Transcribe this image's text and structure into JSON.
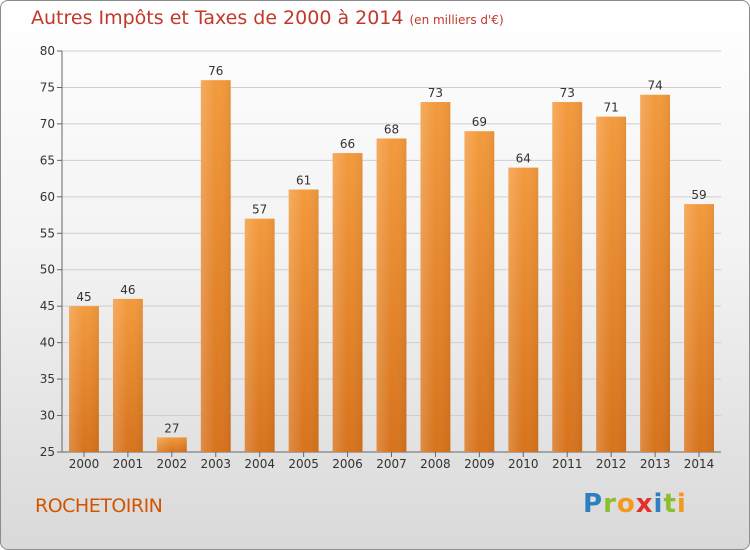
{
  "chart_data": {
    "type": "bar",
    "title": "Autres Impôts et Taxes de 2000 à 2014",
    "subtitle": "(en milliers d'€)",
    "categories": [
      "2000",
      "2001",
      "2002",
      "2003",
      "2004",
      "2005",
      "2006",
      "2007",
      "2008",
      "2009",
      "2010",
      "2011",
      "2012",
      "2013",
      "2014"
    ],
    "values": [
      45,
      46,
      27,
      76,
      57,
      61,
      66,
      68,
      73,
      69,
      64,
      73,
      71,
      74,
      59
    ],
    "ylim": [
      25,
      80
    ],
    "yticks": [
      25,
      30,
      35,
      40,
      45,
      50,
      55,
      60,
      65,
      70,
      75,
      80
    ],
    "grid": true,
    "bar_color": "#f39a3d",
    "bar_color_dark": "#d7731d"
  },
  "footer": {
    "place": "ROCHETOIRIN",
    "logo_letters": [
      {
        "ch": "P",
        "color": "#2e7fc2"
      },
      {
        "ch": "r",
        "color": "#8bbf2f"
      },
      {
        "ch": "o",
        "color": "#f39a1e"
      },
      {
        "ch": "x",
        "color": "#e2302b"
      },
      {
        "ch": "i",
        "color": "#2e7fc2"
      },
      {
        "ch": "t",
        "color": "#8bbf2f"
      },
      {
        "ch": "i",
        "color": "#f39a1e"
      }
    ]
  },
  "colors": {
    "title": "#c0392b",
    "place": "#d35400"
  }
}
